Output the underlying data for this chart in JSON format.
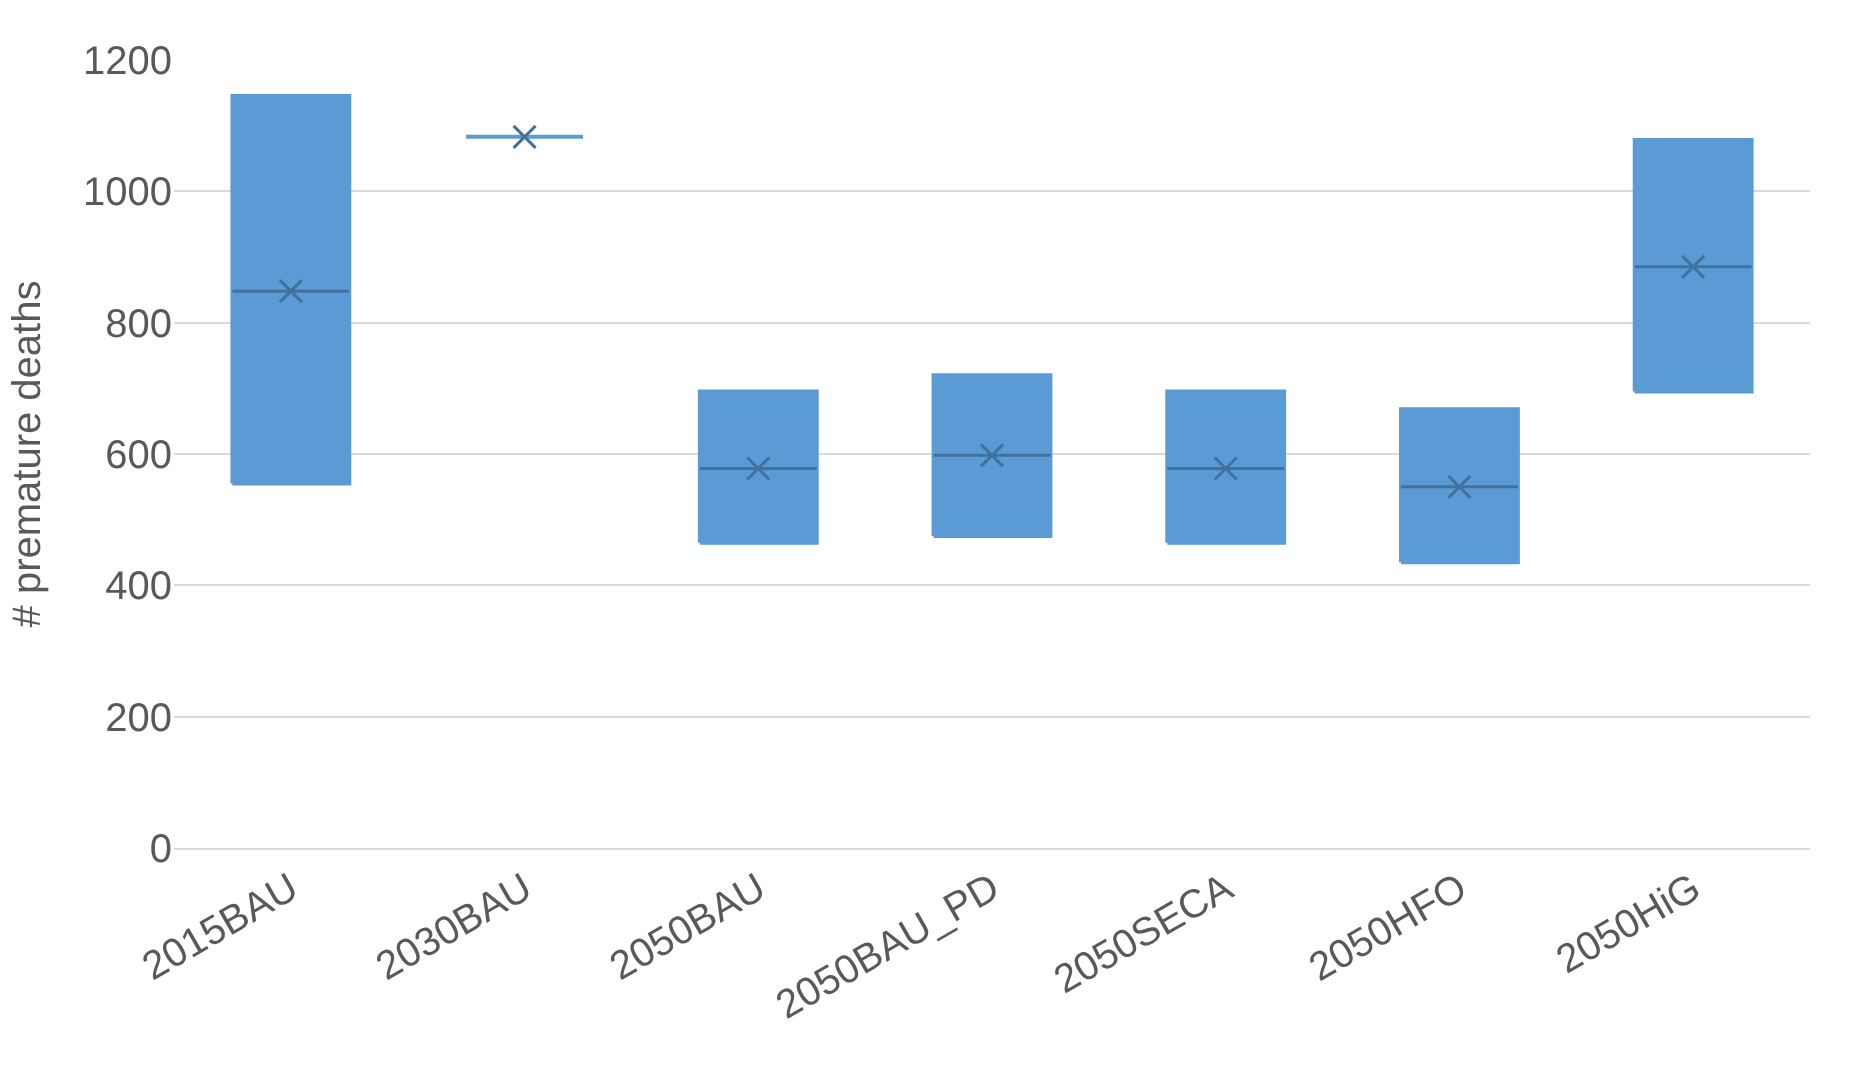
{
  "chart_data": {
    "type": "box",
    "ylabel": "# premature deaths",
    "categories": [
      "2015BAU",
      "2030BAU",
      "2050BAU",
      "2050BAU_PD",
      "2050SECA",
      "2050HFO",
      "2050HiG"
    ],
    "boxes": [
      {
        "low": 555,
        "q1": 555,
        "median": 848,
        "q3": 1145,
        "high": 1145,
        "mean": 848
      },
      {
        "low": 1083,
        "q1": 1083,
        "median": 1083,
        "q3": 1083,
        "high": 1083,
        "mean": 1083
      },
      {
        "low": 465,
        "q1": 465,
        "median": 578,
        "q3": 695,
        "high": 695,
        "mean": 578
      },
      {
        "low": 475,
        "q1": 475,
        "median": 598,
        "q3": 720,
        "high": 720,
        "mean": 598
      },
      {
        "low": 465,
        "q1": 465,
        "median": 578,
        "q3": 695,
        "high": 695,
        "mean": 578
      },
      {
        "low": 435,
        "q1": 435,
        "median": 550,
        "q3": 668,
        "high": 668,
        "mean": 550
      },
      {
        "low": 695,
        "q1": 695,
        "median": 885,
        "q3": 1078,
        "high": 1078,
        "mean": 885
      }
    ],
    "color": "#5b9bd5",
    "ylim": [
      0,
      1200
    ],
    "yticks": [
      0,
      200,
      400,
      600,
      800,
      1000,
      1200
    ],
    "grid": "y",
    "marker": "cross"
  }
}
